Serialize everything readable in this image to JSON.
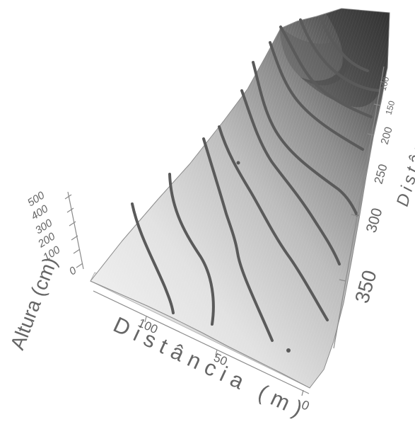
{
  "chart_data": {
    "type": "surface",
    "axes": {
      "z": {
        "label": "Altura (cm)",
        "ticks": [
          "500",
          "400",
          "300",
          "200",
          "100",
          "0"
        ]
      },
      "x_front": {
        "label": "Distância (m)",
        "ticks": [
          "100",
          "50",
          "0"
        ]
      },
      "y_right": {
        "label": "Distância (m)",
        "ticks": [
          "100",
          "150",
          "200",
          "250",
          "300",
          "350"
        ]
      }
    },
    "surface": {
      "style": "shaded 3d terrain with contour lines",
      "color_low": "#f2f2f2",
      "color_high": "#3a3a3a",
      "contour_color": "#5a5a5a",
      "edge_color": "#8a8a8a"
    }
  }
}
